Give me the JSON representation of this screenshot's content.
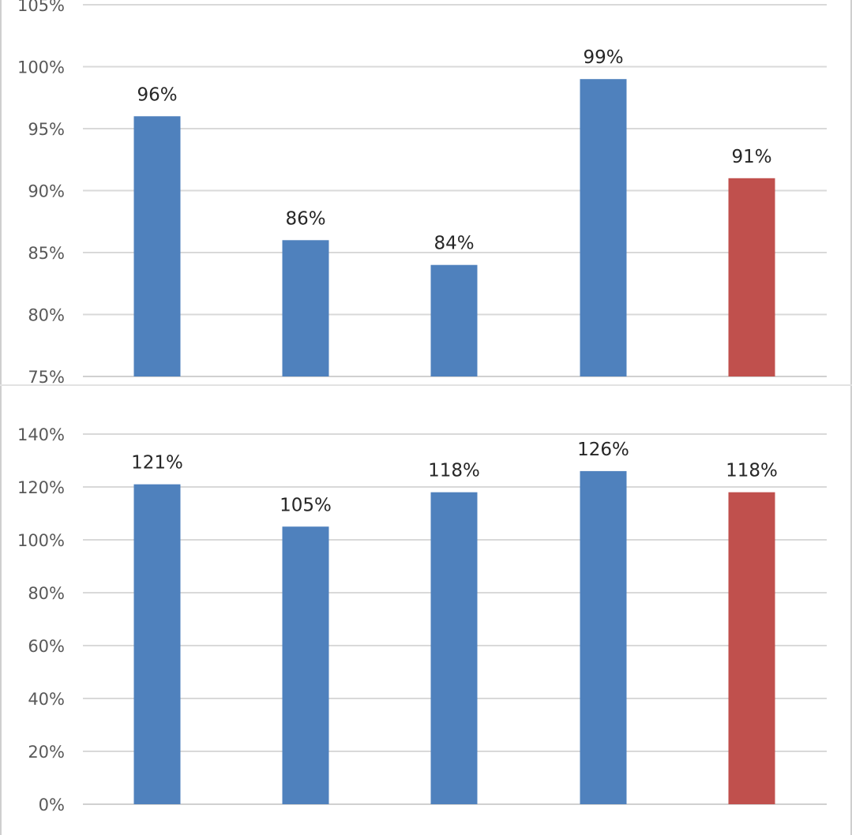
{
  "chart_data": [
    {
      "type": "bar",
      "categories": [
        "",
        "",
        "",
        "",
        ""
      ],
      "values": [
        96,
        86,
        84,
        99,
        91
      ],
      "data_labels": [
        "96%",
        "86%",
        "84%",
        "99%",
        "91%"
      ],
      "bar_colors": [
        "#4f81bd",
        "#4f81bd",
        "#4f81bd",
        "#4f81bd",
        "#c0504d"
      ],
      "ylim": [
        75,
        105
      ],
      "yticks": [
        75,
        80,
        85,
        90,
        95,
        100,
        105
      ],
      "ytick_labels": [
        "75%",
        "80%",
        "85%",
        "90%",
        "95%",
        "100%",
        "105%"
      ],
      "grid": true,
      "legend": "none"
    },
    {
      "type": "bar",
      "categories": [
        "",
        "",
        "",
        "",
        ""
      ],
      "values": [
        121,
        105,
        118,
        126,
        118
      ],
      "data_labels": [
        "121%",
        "105%",
        "118%",
        "126%",
        "118%"
      ],
      "bar_colors": [
        "#4f81bd",
        "#4f81bd",
        "#4f81bd",
        "#4f81bd",
        "#c0504d"
      ],
      "ylim": [
        0,
        140
      ],
      "yticks": [
        0,
        20,
        40,
        60,
        80,
        100,
        120,
        140
      ],
      "ytick_labels": [
        "0%",
        "20%",
        "40%",
        "60%",
        "80%",
        "100%",
        "120%",
        "140%"
      ],
      "grid": true,
      "legend": "none"
    }
  ]
}
